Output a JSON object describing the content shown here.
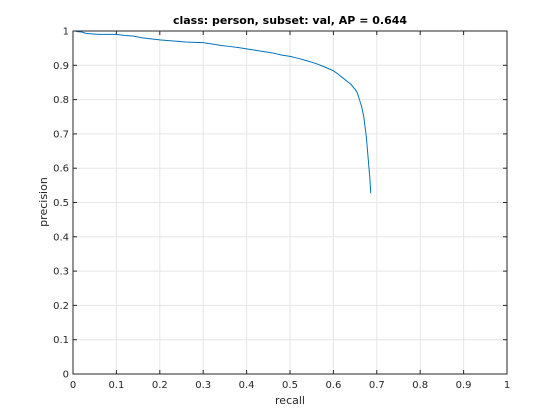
{
  "chart_data": {
    "type": "line",
    "title": "class: person, subset: val, AP = 0.644",
    "xlabel": "recall",
    "ylabel": "precision",
    "xlim": [
      0,
      1
    ],
    "ylim": [
      0,
      1
    ],
    "xticks": [
      0,
      0.1,
      0.2,
      0.3,
      0.4,
      0.5,
      0.6,
      0.7,
      0.8,
      0.9,
      1
    ],
    "yticks": [
      0,
      0.1,
      0.2,
      0.3,
      0.4,
      0.5,
      0.6,
      0.7,
      0.8,
      0.9,
      1
    ],
    "xtick_labels": [
      "0",
      "0.1",
      "0.2",
      "0.3",
      "0.4",
      "0.5",
      "0.6",
      "0.7",
      "0.8",
      "0.9",
      "1"
    ],
    "ytick_labels": [
      "0",
      "0.1",
      "0.2",
      "0.3",
      "0.4",
      "0.5",
      "0.6",
      "0.7",
      "0.8",
      "0.9",
      "1"
    ],
    "grid": true,
    "line_color": "#0072bd",
    "series": [
      {
        "x": [
          0.0,
          0.005,
          0.01,
          0.02,
          0.03,
          0.04,
          0.05,
          0.06,
          0.08,
          0.1,
          0.12,
          0.14,
          0.16,
          0.18,
          0.2,
          0.22,
          0.24,
          0.26,
          0.28,
          0.3,
          0.32,
          0.34,
          0.36,
          0.38,
          0.4,
          0.42,
          0.44,
          0.46,
          0.48,
          0.5,
          0.52,
          0.54,
          0.56,
          0.58,
          0.6,
          0.61,
          0.62,
          0.63,
          0.64,
          0.65,
          0.655,
          0.66,
          0.665,
          0.67,
          0.673,
          0.676,
          0.678,
          0.68,
          0.682,
          0.684,
          0.685,
          0.686
        ],
        "y": [
          1.0,
          1.0,
          0.998,
          0.997,
          0.993,
          0.992,
          0.991,
          0.99,
          0.99,
          0.99,
          0.987,
          0.985,
          0.98,
          0.977,
          0.974,
          0.972,
          0.97,
          0.968,
          0.967,
          0.966,
          0.962,
          0.958,
          0.955,
          0.952,
          0.948,
          0.944,
          0.94,
          0.936,
          0.93,
          0.926,
          0.92,
          0.913,
          0.905,
          0.895,
          0.884,
          0.875,
          0.865,
          0.855,
          0.845,
          0.83,
          0.82,
          0.8,
          0.78,
          0.75,
          0.72,
          0.69,
          0.66,
          0.63,
          0.6,
          0.57,
          0.55,
          0.527
        ]
      }
    ]
  }
}
